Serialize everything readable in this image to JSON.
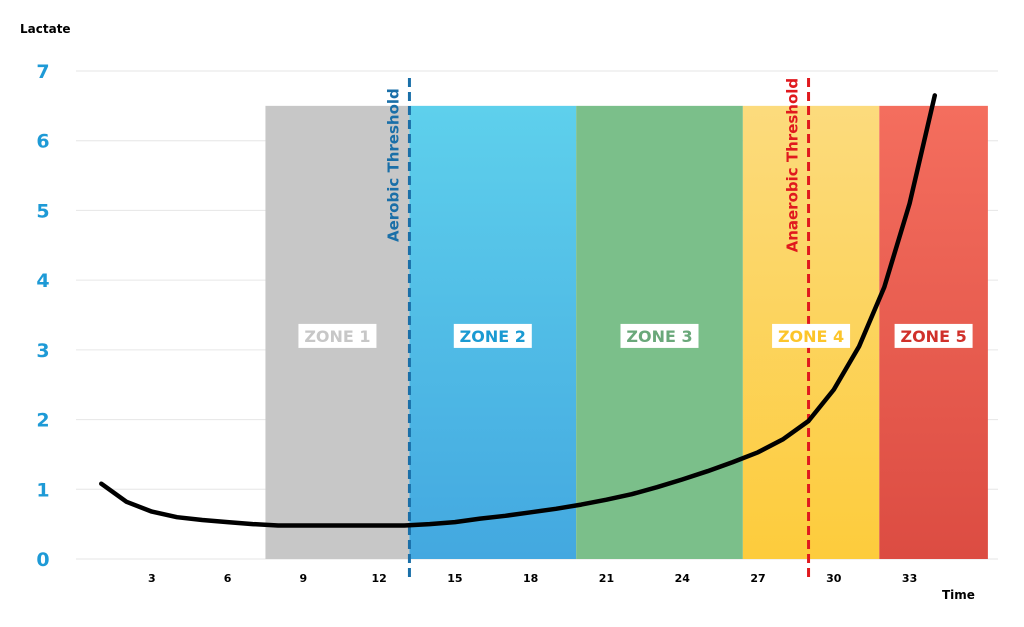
{
  "chart_data": {
    "type": "line",
    "title": "",
    "ylabel": "Lactate",
    "xlabel": "Time",
    "xlim": [
      0,
      36.5
    ],
    "ylim": [
      0,
      7
    ],
    "yticks": [
      "0",
      "1",
      "2",
      "3",
      "4",
      "5",
      "6",
      "7"
    ],
    "xticks": [
      "3",
      "6",
      "9",
      "12",
      "15",
      "18",
      "21",
      "24",
      "27",
      "30",
      "33"
    ],
    "grid": true,
    "colors": {
      "ytick": "#1e9ad6",
      "line": "#000000",
      "grid": "#e6e6e6",
      "aerobic": "#1a6fa8",
      "anaerobic": "#e0191e"
    },
    "zones": [
      {
        "label": "ZONE 1",
        "x_start": 7.5,
        "x_end": 13.2,
        "y_top": 6.5,
        "color_top": "#c7c7c7",
        "color_bottom": "#c7c7c7",
        "text_color": "#c7c7c7"
      },
      {
        "label": "ZONE 2",
        "x_start": 13.2,
        "x_end": 19.8,
        "y_top": 6.5,
        "color_top": "#5ed0ec",
        "color_bottom": "#43a8e0",
        "text_color": "#1a9ad2"
      },
      {
        "label": "ZONE 3",
        "x_start": 19.8,
        "x_end": 26.4,
        "y_top": 6.5,
        "color_top": "#7bbf8a",
        "color_bottom": "#7bbf8a",
        "text_color": "#6aa87a"
      },
      {
        "label": "ZONE 4",
        "x_start": 26.4,
        "x_end": 31.8,
        "y_top": 6.5,
        "color_top": "#fcdb7d",
        "color_bottom": "#fdcc3c",
        "text_color": "#fcc52a"
      },
      {
        "label": "ZONE 5",
        "x_start": 31.8,
        "x_end": 36.1,
        "y_top": 6.5,
        "color_top": "#f46e5e",
        "color_bottom": "#dc4c42",
        "text_color": "#d0302a"
      }
    ],
    "zone_label_y": 3.2,
    "thresholds": [
      {
        "label": "Aerobic Threshold",
        "x": 13.2,
        "color": "#1a6fa8"
      },
      {
        "label": "Anaerobic Threshold",
        "x": 29.0,
        "color": "#e0191e"
      }
    ],
    "series": [
      {
        "x": [
          1,
          2,
          3,
          4,
          5,
          6,
          7,
          8,
          9,
          10,
          11,
          12,
          13,
          14,
          15,
          16,
          17,
          18,
          19,
          20,
          21,
          22,
          23,
          24,
          25,
          26,
          27,
          28,
          29,
          30,
          31,
          32,
          33,
          34
        ],
        "values": [
          1.08,
          0.82,
          0.68,
          0.6,
          0.56,
          0.53,
          0.5,
          0.48,
          0.48,
          0.48,
          0.48,
          0.48,
          0.48,
          0.5,
          0.53,
          0.58,
          0.62,
          0.67,
          0.72,
          0.78,
          0.85,
          0.93,
          1.03,
          1.14,
          1.26,
          1.39,
          1.53,
          1.72,
          1.98,
          2.43,
          3.05,
          3.9,
          5.1,
          6.65
        ]
      }
    ]
  }
}
